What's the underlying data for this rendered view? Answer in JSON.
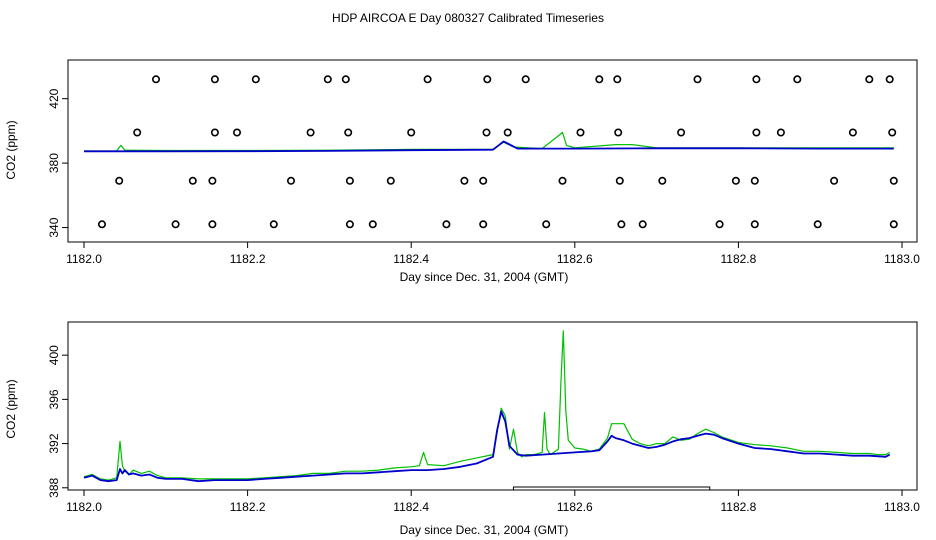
{
  "title": "HDP AIRCOA E  Day 080327  Calibrated Timeseries",
  "colors": {
    "green": "#00c000",
    "blue": "#0000cc",
    "axis": "#000000",
    "marker": "#000000"
  },
  "chart_data": [
    {
      "type": "line",
      "xlabel": "Day since Dec. 31, 2004 (GMT)",
      "ylabel": "CO2 (ppm)",
      "xlim": [
        1182.0,
        1183.0
      ],
      "ylim": [
        336,
        444
      ],
      "xticks": [
        "1182.0",
        "1182.2",
        "1182.4",
        "1182.6",
        "1182.8",
        "1183.0"
      ],
      "xtick_values": [
        1182.0,
        1182.2,
        1182.4,
        1182.6,
        1182.8,
        1183.0
      ],
      "yticks": [
        "340",
        "380",
        "420"
      ],
      "ytick_values": [
        340,
        380,
        420
      ],
      "series": [
        {
          "color": "green",
          "x": [
            1182.0,
            1182.04,
            1182.045,
            1182.05,
            1182.1,
            1182.2,
            1182.3,
            1182.4,
            1182.5,
            1182.513,
            1182.525,
            1182.56,
            1182.585,
            1182.59,
            1182.6,
            1182.65,
            1182.67,
            1182.7,
            1182.8,
            1182.9,
            1182.99
          ],
          "y": [
            387.5,
            387.5,
            391,
            388,
            387.8,
            387.8,
            388,
            388.5,
            388.5,
            393,
            390,
            389,
            399,
            391,
            389.5,
            391.5,
            391.5,
            389.5,
            389.5,
            389.5,
            389.5
          ]
        },
        {
          "color": "blue",
          "x": [
            1182.0,
            1182.1,
            1182.2,
            1182.3,
            1182.4,
            1182.5,
            1182.513,
            1182.53,
            1182.6,
            1182.7,
            1182.8,
            1182.9,
            1182.99
          ],
          "y": [
            387.3,
            387.3,
            387.4,
            387.6,
            388,
            388.3,
            393.5,
            389,
            389,
            389.2,
            389.2,
            389,
            389
          ]
        }
      ],
      "markers": {
        "rows": [
          {
            "y": 432,
            "x": [
              1182.088,
              1182.16,
              1182.21,
              1182.298,
              1182.32,
              1182.42,
              1182.493,
              1182.54,
              1182.63,
              1182.652,
              1182.75,
              1182.822,
              1182.872,
              1182.96,
              1182.985
            ]
          },
          {
            "y": 399,
            "x": [
              1182.065,
              1182.16,
              1182.187,
              1182.277,
              1182.323,
              1182.4,
              1182.492,
              1182.518,
              1182.607,
              1182.653,
              1182.73,
              1182.822,
              1182.852,
              1182.94,
              1182.988
            ]
          },
          {
            "y": 369,
            "x": [
              1182.043,
              1182.133,
              1182.157,
              1182.253,
              1182.325,
              1182.375,
              1182.465,
              1182.488,
              1182.585,
              1182.655,
              1182.707,
              1182.797,
              1182.82,
              1182.917,
              1182.99
            ]
          },
          {
            "y": 342,
            "x": [
              1182.022,
              1182.112,
              1182.157,
              1182.232,
              1182.325,
              1182.353,
              1182.443,
              1182.488,
              1182.565,
              1182.657,
              1182.683,
              1182.777,
              1182.82,
              1182.897,
              1182.99
            ]
          }
        ]
      }
    },
    {
      "type": "line",
      "xlabel": "Day since Dec. 31, 2004 (GMT)",
      "ylabel": "CO2 (ppm)",
      "xlim": [
        1182.0,
        1183.0
      ],
      "ylim": [
        387.8,
        403
      ],
      "xticks": [
        "1182.0",
        "1182.2",
        "1182.4",
        "1182.6",
        "1182.8",
        "1183.0"
      ],
      "xtick_values": [
        1182.0,
        1182.2,
        1182.4,
        1182.6,
        1182.8,
        1183.0
      ],
      "yticks": [
        "388",
        "392",
        "396",
        "400"
      ],
      "ytick_values": [
        388,
        392,
        396,
        400
      ],
      "series": [
        {
          "color": "green",
          "x": [
            1182.0,
            1182.01,
            1182.02,
            1182.03,
            1182.04,
            1182.044,
            1182.047,
            1182.05,
            1182.055,
            1182.06,
            1182.07,
            1182.08,
            1182.09,
            1182.1,
            1182.12,
            1182.14,
            1182.16,
            1182.18,
            1182.2,
            1182.22,
            1182.24,
            1182.26,
            1182.28,
            1182.3,
            1182.32,
            1182.34,
            1182.36,
            1182.38,
            1182.4,
            1182.41,
            1182.415,
            1182.42,
            1182.44,
            1182.46,
            1182.48,
            1182.5,
            1182.505,
            1182.51,
            1182.515,
            1182.52,
            1182.525,
            1182.53,
            1182.535,
            1182.54,
            1182.55,
            1182.56,
            1182.563,
            1182.566,
            1182.57,
            1182.58,
            1182.583,
            1182.586,
            1182.589,
            1182.592,
            1182.6,
            1182.61,
            1182.62,
            1182.63,
            1182.64,
            1182.645,
            1182.65,
            1182.66,
            1182.67,
            1182.68,
            1182.69,
            1182.7,
            1182.71,
            1182.72,
            1182.73,
            1182.74,
            1182.75,
            1182.76,
            1182.77,
            1182.78,
            1182.8,
            1182.82,
            1182.84,
            1182.86,
            1182.88,
            1182.9,
            1182.92,
            1182.94,
            1182.96,
            1182.97,
            1182.98,
            1182.985
          ],
          "y": [
            389.0,
            389.2,
            388.8,
            388.7,
            388.9,
            392.2,
            390.0,
            389.5,
            389.2,
            389.6,
            389.3,
            389.5,
            389.1,
            388.9,
            388.9,
            388.8,
            388.8,
            388.8,
            388.8,
            388.9,
            389.0,
            389.1,
            389.3,
            389.3,
            389.5,
            389.5,
            389.6,
            389.8,
            389.9,
            390.0,
            391.2,
            390.1,
            390.0,
            390.4,
            390.7,
            391.0,
            393.0,
            395.2,
            394.5,
            391.5,
            393.3,
            391.2,
            390.8,
            391.0,
            391.0,
            391.2,
            394.8,
            391.5,
            391.0,
            391.5,
            397.5,
            402.2,
            395.0,
            392.3,
            391.6,
            391.5,
            391.3,
            391.5,
            392.5,
            393.8,
            393.8,
            393.8,
            392.4,
            392.0,
            391.8,
            392.0,
            392.0,
            392.6,
            392.3,
            392.4,
            392.9,
            393.3,
            393.0,
            392.6,
            392.1,
            391.9,
            391.8,
            391.6,
            391.3,
            391.3,
            391.2,
            391.1,
            391.1,
            391.0,
            391.0,
            391.2
          ]
        },
        {
          "color": "blue",
          "x": [
            1182.0,
            1182.01,
            1182.02,
            1182.03,
            1182.04,
            1182.044,
            1182.047,
            1182.05,
            1182.055,
            1182.06,
            1182.07,
            1182.08,
            1182.09,
            1182.1,
            1182.12,
            1182.14,
            1182.16,
            1182.18,
            1182.2,
            1182.22,
            1182.24,
            1182.26,
            1182.28,
            1182.3,
            1182.32,
            1182.34,
            1182.36,
            1182.38,
            1182.4,
            1182.41,
            1182.42,
            1182.44,
            1182.46,
            1182.48,
            1182.5,
            1182.505,
            1182.51,
            1182.515,
            1182.52,
            1182.53,
            1182.54,
            1182.56,
            1182.58,
            1182.6,
            1182.62,
            1182.63,
            1182.64,
            1182.645,
            1182.65,
            1182.66,
            1182.67,
            1182.68,
            1182.69,
            1182.7,
            1182.71,
            1182.72,
            1182.73,
            1182.74,
            1182.75,
            1182.76,
            1182.77,
            1182.78,
            1182.8,
            1182.82,
            1182.84,
            1182.86,
            1182.88,
            1182.9,
            1182.92,
            1182.94,
            1182.96,
            1182.98,
            1182.985
          ],
          "y": [
            388.9,
            389.1,
            388.7,
            388.6,
            388.7,
            389.7,
            389.3,
            389.6,
            389.2,
            389.3,
            389.1,
            389.2,
            388.9,
            388.8,
            388.8,
            388.6,
            388.7,
            388.7,
            388.7,
            388.8,
            388.9,
            389.0,
            389.1,
            389.2,
            389.3,
            389.3,
            389.4,
            389.5,
            389.6,
            389.6,
            389.6,
            389.7,
            389.9,
            390.2,
            390.8,
            393.2,
            394.9,
            394.0,
            391.8,
            391.0,
            390.9,
            391.0,
            391.1,
            391.2,
            391.3,
            391.4,
            392.2,
            392.7,
            392.5,
            392.3,
            392.0,
            391.8,
            391.6,
            391.7,
            391.9,
            392.2,
            392.4,
            392.5,
            392.7,
            392.9,
            392.8,
            392.5,
            392.0,
            391.6,
            391.5,
            391.3,
            391.1,
            391.1,
            391.0,
            390.9,
            390.9,
            390.8,
            391.0
          ]
        }
      ],
      "bracket": {
        "x": [
          1182.525,
          1182.765
        ]
      }
    }
  ]
}
